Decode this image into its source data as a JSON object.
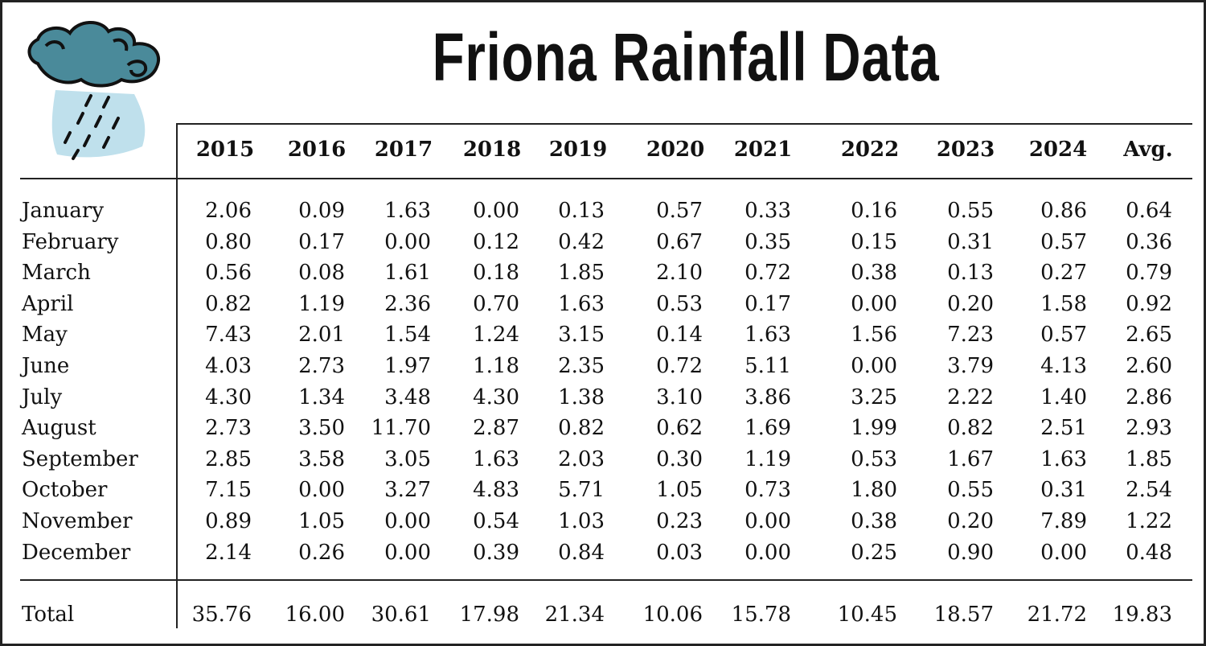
{
  "title": "Friona Rainfall Data",
  "colors": {
    "cloud": "#4a8a9a",
    "rain": "#bfe0ec",
    "ink": "#111111"
  },
  "icon": "rain-cloud-icon",
  "chart_data": {
    "type": "table",
    "title": "Friona Rainfall Data",
    "columns": [
      "2015",
      "2016",
      "2017",
      "2018",
      "2019",
      "2020",
      "2021",
      "2022",
      "2023",
      "2024",
      "Avg."
    ],
    "rows": [
      {
        "label": "January",
        "values": [
          "2.06",
          "0.09",
          "1.63",
          "0.00",
          "0.13",
          "0.57",
          "0.33",
          "0.16",
          "0.55",
          "0.86",
          "0.64"
        ]
      },
      {
        "label": "February",
        "values": [
          "0.80",
          "0.17",
          "0.00",
          "0.12",
          "0.42",
          "0.67",
          "0.35",
          "0.15",
          "0.31",
          "0.57",
          "0.36"
        ]
      },
      {
        "label": "March",
        "values": [
          "0.56",
          "0.08",
          "1.61",
          "0.18",
          "1.85",
          "2.10",
          "0.72",
          "0.38",
          "0.13",
          "0.27",
          "0.79"
        ]
      },
      {
        "label": "April",
        "values": [
          "0.82",
          "1.19",
          "2.36",
          "0.70",
          "1.63",
          "0.53",
          "0.17",
          "0.00",
          "0.20",
          "1.58",
          "0.92"
        ]
      },
      {
        "label": "May",
        "values": [
          "7.43",
          "2.01",
          "1.54",
          "1.24",
          "3.15",
          "0.14",
          "1.63",
          "1.56",
          "7.23",
          "0.57",
          "2.65"
        ]
      },
      {
        "label": "June",
        "values": [
          "4.03",
          "2.73",
          "1.97",
          "1.18",
          "2.35",
          "0.72",
          "5.11",
          "0.00",
          "3.79",
          "4.13",
          "2.60"
        ]
      },
      {
        "label": "July",
        "values": [
          "4.30",
          "1.34",
          "3.48",
          "4.30",
          "1.38",
          "3.10",
          "3.86",
          "3.25",
          "2.22",
          "1.40",
          "2.86"
        ]
      },
      {
        "label": "August",
        "values": [
          "2.73",
          "3.50",
          "11.70",
          "2.87",
          "0.82",
          "0.62",
          "1.69",
          "1.99",
          "0.82",
          "2.51",
          "2.93"
        ]
      },
      {
        "label": "September",
        "values": [
          "2.85",
          "3.58",
          "3.05",
          "1.63",
          "2.03",
          "0.30",
          "1.19",
          "0.53",
          "1.67",
          "1.63",
          "1.85"
        ]
      },
      {
        "label": "October",
        "values": [
          "7.15",
          "0.00",
          "3.27",
          "4.83",
          "5.71",
          "1.05",
          "0.73",
          "1.80",
          "0.55",
          "0.31",
          "2.54"
        ]
      },
      {
        "label": "November",
        "values": [
          "0.89",
          "1.05",
          "0.00",
          "0.54",
          "1.03",
          "0.23",
          "0.00",
          "0.38",
          "0.20",
          "7.89",
          "1.22"
        ]
      },
      {
        "label": "December",
        "values": [
          "2.14",
          "0.26",
          "0.00",
          "0.39",
          "0.84",
          "0.03",
          "0.00",
          "0.25",
          "0.90",
          "0.00",
          "0.48"
        ]
      }
    ],
    "total": {
      "label": "Total",
      "values": [
        "35.76",
        "16.00",
        "30.61",
        "17.98",
        "21.34",
        "10.06",
        "15.78",
        "10.45",
        "18.57",
        "21.72",
        "19.83"
      ]
    }
  }
}
